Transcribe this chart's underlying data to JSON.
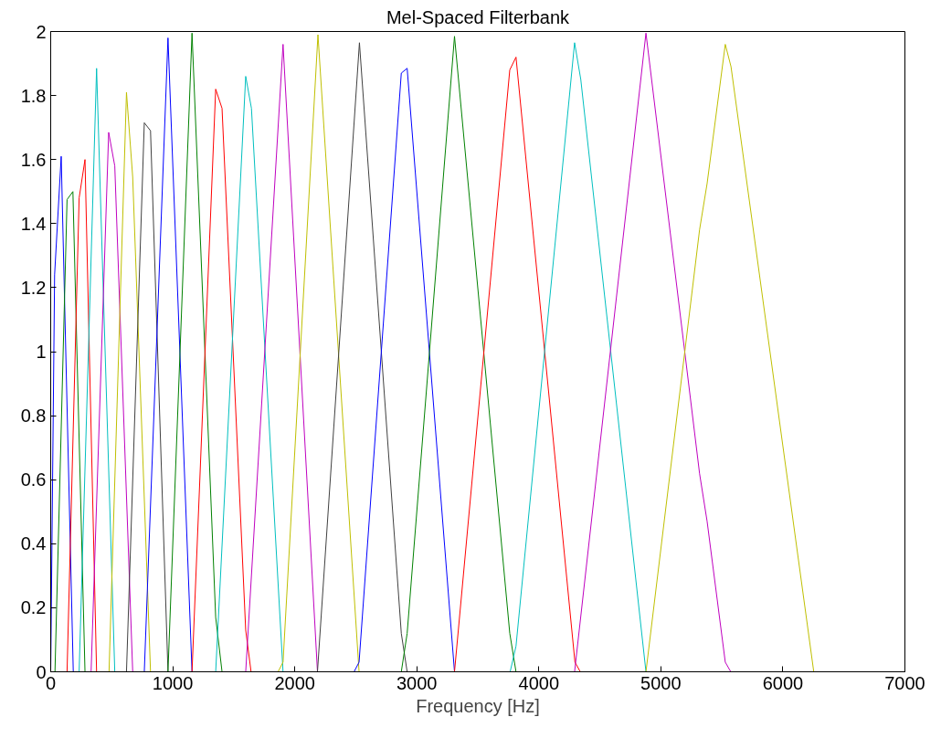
{
  "chart_data": {
    "type": "line",
    "title": "Mel-Spaced Filterbank",
    "xlabel": "Frequency [Hz]",
    "xlim": [
      0,
      7000
    ],
    "ylim": [
      0,
      2
    ],
    "xticks": [
      0,
      1000,
      2000,
      3000,
      4000,
      5000,
      6000,
      7000
    ],
    "yticks": [
      0,
      0.2,
      0.4,
      0.6,
      0.8,
      1,
      1.2,
      1.4,
      1.6,
      1.8,
      2
    ],
    "grid": false,
    "marker": "none",
    "line_style": "solid",
    "series": [
      {
        "color": "#0000ff",
        "x": [
          0,
          32,
          86,
          185
        ],
        "values": [
          0,
          1.24,
          1.61,
          0
        ]
      },
      {
        "color": "#008000",
        "x": [
          35,
          134,
          182,
          281
        ],
        "values": [
          0,
          1.475,
          1.5,
          0
        ]
      },
      {
        "color": "#ff0000",
        "x": [
          134,
          233,
          281,
          376
        ],
        "values": [
          0,
          1.48,
          1.6,
          0
        ]
      },
      {
        "color": "#00bfbf",
        "x": [
          233,
          376,
          525
        ],
        "values": [
          0,
          1.885,
          0
        ]
      },
      {
        "color": "#bf00bf",
        "x": [
          331,
          475,
          525,
          672
        ],
        "values": [
          0,
          1.685,
          1.58,
          0
        ]
      },
      {
        "color": "#bfbf00",
        "x": [
          478,
          621,
          672,
          818
        ],
        "values": [
          0,
          1.81,
          1.545,
          0
        ]
      },
      {
        "color": "#404040",
        "x": [
          621,
          767,
          818,
          961
        ],
        "values": [
          0,
          1.715,
          1.69,
          0
        ]
      },
      {
        "color": "#0000ff",
        "x": [
          767,
          961,
          1158
        ],
        "values": [
          0,
          1.98,
          0
        ]
      },
      {
        "color": "#008000",
        "x": [
          961,
          1158,
          1352,
          1404
        ],
        "values": [
          0,
          1.995,
          0.17,
          0
        ]
      },
      {
        "color": "#ff0000",
        "x": [
          1158,
          1352,
          1404,
          1598,
          1642
        ],
        "values": [
          0,
          1.82,
          1.76,
          0.13,
          0
        ]
      },
      {
        "color": "#00bfbf",
        "x": [
          1352,
          1598,
          1645,
          1904
        ],
        "values": [
          0,
          1.86,
          1.76,
          0
        ]
      },
      {
        "color": "#bf00bf",
        "x": [
          1598,
          1904,
          2186
        ],
        "values": [
          0,
          1.96,
          0
        ]
      },
      {
        "color": "#bfbf00",
        "x": [
          1863,
          1904,
          2190,
          2527
        ],
        "values": [
          0,
          0.03,
          1.99,
          0
        ]
      },
      {
        "color": "#404040",
        "x": [
          2186,
          2530,
          2873,
          2921
        ],
        "values": [
          0,
          1.965,
          0.12,
          0
        ]
      },
      {
        "color": "#0000ff",
        "x": [
          2486,
          2527,
          2873,
          2921,
          3309
        ],
        "values": [
          0,
          0.03,
          1.87,
          1.885,
          0
        ]
      },
      {
        "color": "#008000",
        "x": [
          2873,
          2921,
          3309,
          3762,
          3813
        ],
        "values": [
          0,
          0.12,
          1.985,
          0.12,
          0
        ]
      },
      {
        "color": "#ff0000",
        "x": [
          3309,
          3762,
          3813,
          4296,
          4340
        ],
        "values": [
          0,
          1.88,
          1.92,
          0.03,
          0
        ]
      },
      {
        "color": "#00bfbf",
        "x": [
          3765,
          3813,
          4293,
          4344,
          4878
        ],
        "values": [
          0,
          0.08,
          1.965,
          1.85,
          0
        ]
      },
      {
        "color": "#bf00bf",
        "x": [
          4293,
          4878,
          5317,
          5379,
          5528,
          5573
        ],
        "values": [
          0,
          1.995,
          0.62,
          0.47,
          0.03,
          0
        ]
      },
      {
        "color": "#bfbf00",
        "x": [
          0,
          4878,
          5317,
          5379,
          5528,
          5575,
          6253
        ],
        "values": [
          0,
          0,
          1.38,
          1.525,
          1.96,
          1.89,
          0
        ]
      }
    ]
  }
}
